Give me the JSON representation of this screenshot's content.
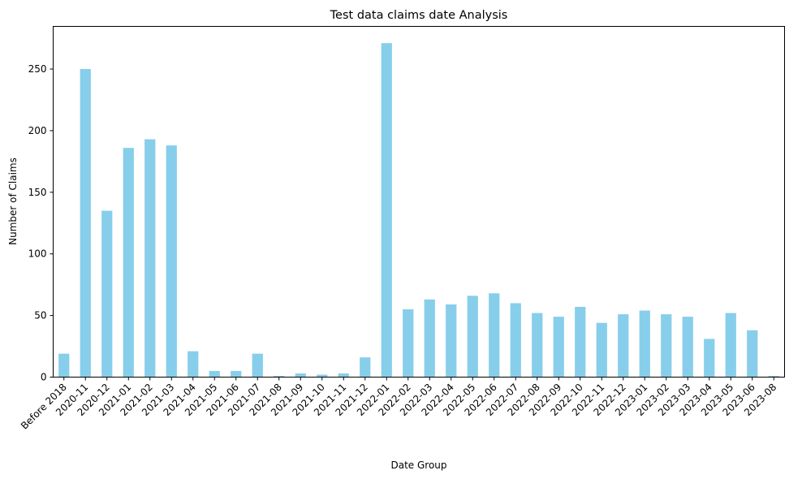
{
  "chart_data": {
    "type": "bar",
    "title": "Test data claims date Analysis",
    "xlabel": "Date Group",
    "ylabel": "Number of Claims",
    "categories": [
      "Before 2018",
      "2020-11",
      "2020-12",
      "2021-01",
      "2021-02",
      "2021-03",
      "2021-04",
      "2021-05",
      "2021-06",
      "2021-07",
      "2021-08",
      "2021-09",
      "2021-10",
      "2021-11",
      "2021-12",
      "2022-01",
      "2022-02",
      "2022-03",
      "2022-04",
      "2022-05",
      "2022-06",
      "2022-07",
      "2022-08",
      "2022-09",
      "2022-10",
      "2022-11",
      "2022-12",
      "2023-01",
      "2023-02",
      "2023-03",
      "2023-04",
      "2023-05",
      "2023-06",
      "2023-08"
    ],
    "values": [
      19,
      250,
      135,
      186,
      193,
      188,
      21,
      5,
      5,
      19,
      1,
      3,
      2,
      3,
      16,
      271,
      55,
      63,
      59,
      66,
      68,
      60,
      52,
      49,
      57,
      44,
      51,
      54,
      51,
      49,
      31,
      52,
      38,
      1
    ],
    "yticks": [
      0,
      50,
      100,
      150,
      200,
      250
    ],
    "ylim": [
      0,
      284.6
    ],
    "bar_color": "#87CEEB",
    "grid": false,
    "legend": "none"
  }
}
